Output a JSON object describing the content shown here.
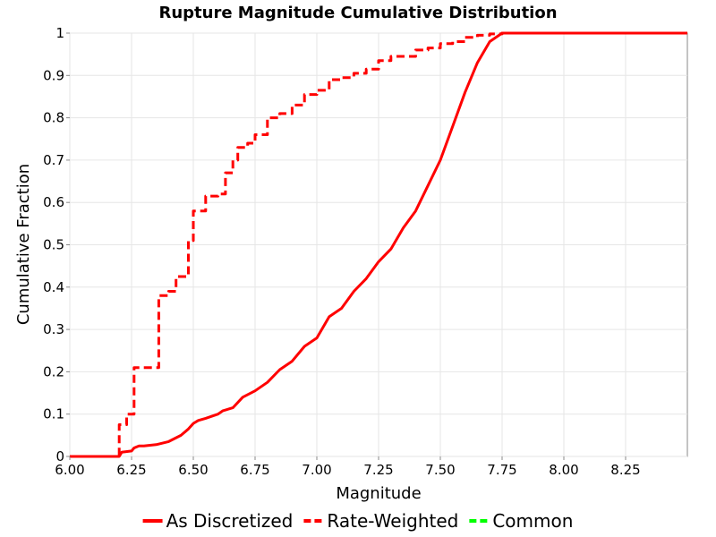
{
  "chart_data": {
    "type": "line",
    "title": "Rupture Magnitude Cumulative Distribution",
    "xlabel": "Magnitude",
    "ylabel": "Cumulative Fraction",
    "xlim": [
      6.0,
      8.5
    ],
    "ylim": [
      0,
      1
    ],
    "xticks": [
      "6.00",
      "6.25",
      "6.50",
      "6.75",
      "7.00",
      "7.25",
      "7.50",
      "7.75",
      "8.00",
      "8.25"
    ],
    "yticks": [
      "0",
      "0.1",
      "0.2",
      "0.3",
      "0.4",
      "0.5",
      "0.6",
      "0.7",
      "0.8",
      "0.9",
      "1"
    ],
    "grid": true,
    "legend_position": "bottom",
    "series": [
      {
        "name": "As Discretized",
        "color": "#ff0000",
        "style": "solid",
        "step": false,
        "x": [
          6.0,
          6.2,
          6.21,
          6.25,
          6.26,
          6.28,
          6.3,
          6.35,
          6.4,
          6.45,
          6.48,
          6.5,
          6.52,
          6.55,
          6.6,
          6.62,
          6.66,
          6.7,
          6.75,
          6.8,
          6.85,
          6.9,
          6.95,
          7.0,
          7.05,
          7.1,
          7.15,
          7.2,
          7.25,
          7.3,
          7.35,
          7.4,
          7.45,
          7.5,
          7.55,
          7.6,
          7.65,
          7.7,
          7.75,
          7.8,
          8.0,
          8.25,
          8.5
        ],
        "y": [
          0.0,
          0.0,
          0.01,
          0.013,
          0.02,
          0.025,
          0.025,
          0.028,
          0.035,
          0.05,
          0.065,
          0.078,
          0.085,
          0.09,
          0.1,
          0.108,
          0.115,
          0.14,
          0.155,
          0.175,
          0.205,
          0.225,
          0.26,
          0.28,
          0.33,
          0.35,
          0.39,
          0.42,
          0.46,
          0.49,
          0.54,
          0.58,
          0.64,
          0.7,
          0.78,
          0.86,
          0.93,
          0.98,
          1.0,
          1.0,
          1.0,
          1.0,
          1.0
        ]
      },
      {
        "name": "Rate-Weighted",
        "color": "#ff0000",
        "style": "dashed",
        "step": true,
        "x": [
          6.0,
          6.2,
          6.23,
          6.26,
          6.33,
          6.36,
          6.4,
          6.43,
          6.48,
          6.5,
          6.55,
          6.6,
          6.63,
          6.66,
          6.68,
          6.72,
          6.75,
          6.8,
          6.85,
          6.9,
          6.95,
          7.0,
          7.05,
          7.1,
          7.15,
          7.2,
          7.25,
          7.3,
          7.4,
          7.45,
          7.5,
          7.55,
          7.6,
          7.65,
          7.7,
          7.75,
          8.0,
          8.5
        ],
        "y": [
          0.0,
          0.075,
          0.1,
          0.21,
          0.21,
          0.38,
          0.39,
          0.425,
          0.51,
          0.58,
          0.615,
          0.62,
          0.67,
          0.7,
          0.73,
          0.74,
          0.76,
          0.8,
          0.81,
          0.83,
          0.855,
          0.865,
          0.89,
          0.895,
          0.905,
          0.915,
          0.935,
          0.945,
          0.96,
          0.965,
          0.975,
          0.98,
          0.99,
          0.995,
          0.998,
          1.0,
          1.0,
          1.0
        ]
      },
      {
        "name": "Common",
        "color": "#00ff00",
        "style": "dashed",
        "step": false,
        "x": [],
        "y": []
      }
    ]
  }
}
